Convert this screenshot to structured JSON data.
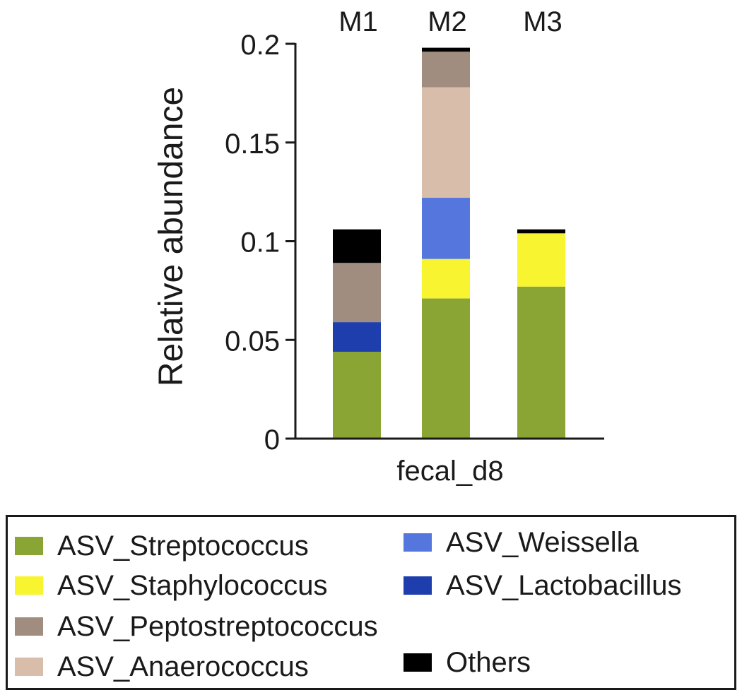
{
  "chart_data": {
    "type": "bar",
    "stacked": true,
    "categories": [
      "M1",
      "M2",
      "M3"
    ],
    "group_label": "fecal_d8",
    "ylabel": "Relative abundance",
    "xlabel": "",
    "ylim": [
      0,
      0.2
    ],
    "yticks": [
      "0",
      "0.05",
      "0.1",
      "0.15",
      "0.2"
    ],
    "series": [
      {
        "name": "ASV_Streptococcus",
        "color": "#8aa534",
        "values": [
          0.044,
          0.071,
          0.077
        ]
      },
      {
        "name": "ASV_Lactobacillus",
        "color": "#1f3ead",
        "values": [
          0.015,
          0,
          0
        ]
      },
      {
        "name": "ASV_Staphylococcus",
        "color": "#f8f530",
        "values": [
          0,
          0.02,
          0.027
        ]
      },
      {
        "name": "ASV_Weissella",
        "color": "#5577dd",
        "values": [
          0,
          0.031,
          0
        ]
      },
      {
        "name": "ASV_Anaerococcus",
        "color": "#d8bdab",
        "values": [
          0,
          0.056,
          0
        ]
      },
      {
        "name": "ASV_Peptostreptococcus",
        "color": "#a08d80",
        "values": [
          0.03,
          0.018,
          0
        ]
      },
      {
        "name": "Others",
        "color": "#000000",
        "values": [
          0.017,
          0.002,
          0.002
        ]
      }
    ],
    "legend": {
      "placement": "bottom",
      "items": [
        {
          "name": "ASV_Streptococcus",
          "color": "#8aa534"
        },
        {
          "name": "ASV_Weissella",
          "color": "#5577dd"
        },
        {
          "name": "ASV_Staphylococcus",
          "color": "#f8f530"
        },
        {
          "name": "ASV_Lactobacillus",
          "color": "#1f3ead"
        },
        {
          "name": "ASV_Peptostreptococcus",
          "color": "#a08d80"
        },
        {
          "name": "ASV_Anaerococcus",
          "color": "#d8bdab"
        },
        {
          "name": "Others",
          "color": "#000000"
        }
      ]
    },
    "grid": false
  }
}
